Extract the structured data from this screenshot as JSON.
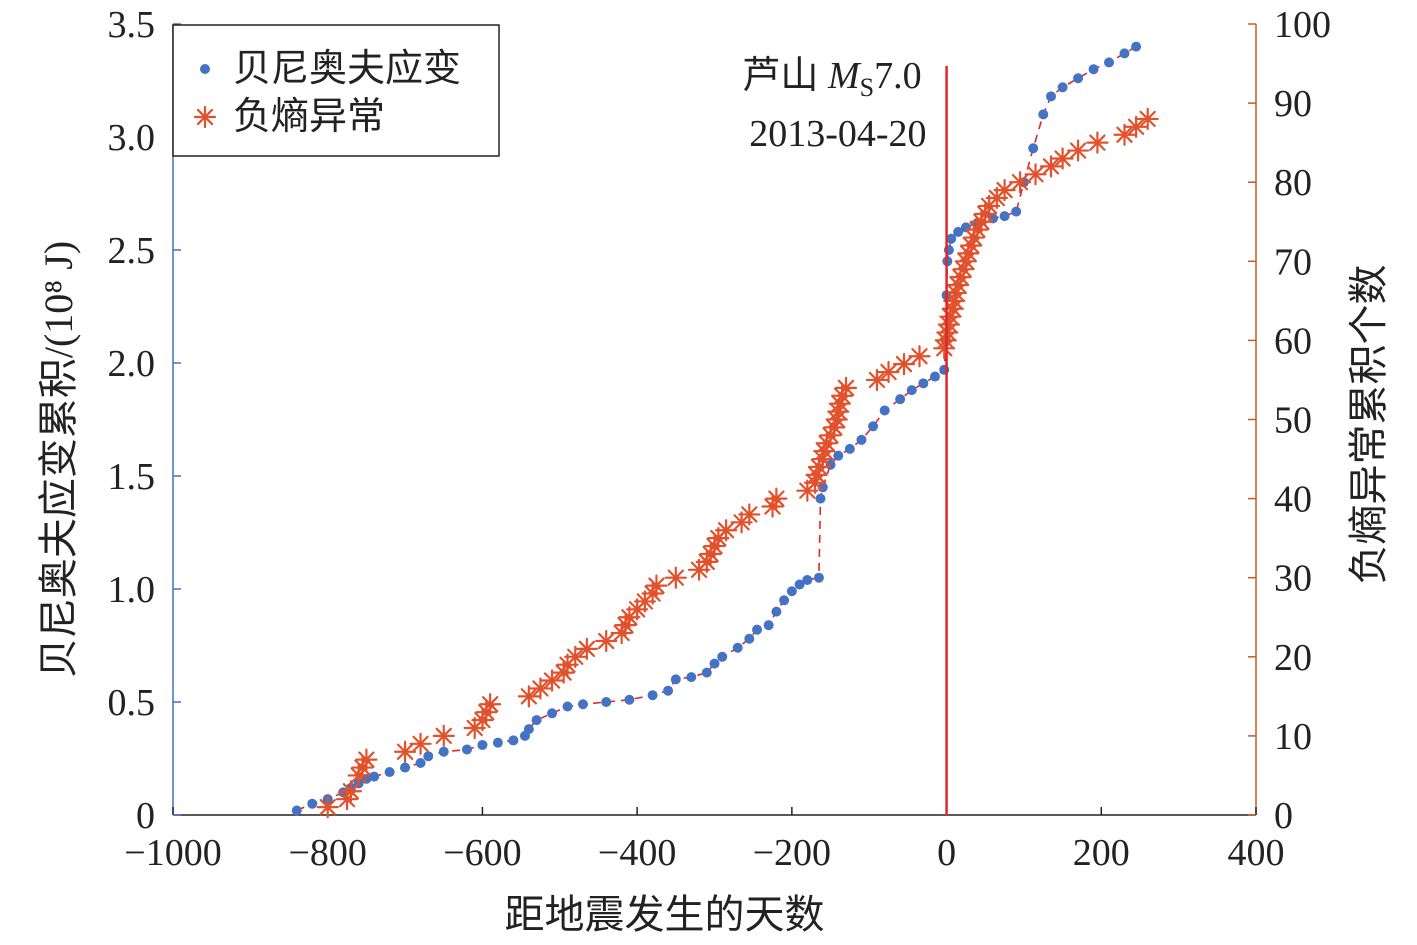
{
  "colors": {
    "strain": "#4472c4",
    "entropy": "#e2512b",
    "event": "#e0262b",
    "axis_left": "#4472c4",
    "axis_right": "#c55a2b"
  },
  "chart_data": {
    "type": "scatter",
    "xlabel": "距地震发生的天数",
    "ylabel_left": "贝尼奥夫应变累积/(10⁸ J)",
    "ylabel_right": "负熵异常累积个数",
    "xlim": [
      -1000,
      400
    ],
    "ylim_left": [
      0,
      3.5
    ],
    "ylim_right": [
      0,
      100
    ],
    "x_ticks": [
      -1000,
      -800,
      -600,
      -400,
      -200,
      0,
      200,
      400
    ],
    "x_tick_labels": [
      "−1000",
      "−800",
      "−600",
      "−400",
      "−200",
      "0",
      "200",
      "400"
    ],
    "y_left_ticks": [
      0,
      0.5,
      1.0,
      1.5,
      2.0,
      2.5,
      3.0,
      3.5
    ],
    "y_left_tick_labels": [
      "0",
      "0.5",
      "1.0",
      "1.5",
      "2.0",
      "2.5",
      "3.0",
      "3.5"
    ],
    "y_right_ticks": [
      0,
      10,
      20,
      30,
      40,
      50,
      60,
      70,
      80,
      90,
      100
    ],
    "y_right_tick_labels": [
      "0",
      "10",
      "20",
      "30",
      "40",
      "50",
      "60",
      "70",
      "80",
      "90",
      "100"
    ],
    "legend": {
      "position": "top-left",
      "entries": [
        "贝尼奥夫应变",
        "负熵异常"
      ]
    },
    "annotation": {
      "x": 0,
      "line1_prefix": "芦山 ",
      "line1_italic": "M",
      "line1_sub": "S",
      "line1_suffix": "7.0",
      "line2": "2013-04-20"
    },
    "series": [
      {
        "name": "贝尼奥夫应变",
        "axis": "left",
        "marker": "dot",
        "points": [
          [
            -840,
            0.02
          ],
          [
            -820,
            0.05
          ],
          [
            -800,
            0.07
          ],
          [
            -780,
            0.1
          ],
          [
            -770,
            0.12
          ],
          [
            -760,
            0.14
          ],
          [
            -750,
            0.16
          ],
          [
            -740,
            0.17
          ],
          [
            -720,
            0.19
          ],
          [
            -700,
            0.21
          ],
          [
            -680,
            0.23
          ],
          [
            -670,
            0.26
          ],
          [
            -650,
            0.28
          ],
          [
            -620,
            0.29
          ],
          [
            -600,
            0.31
          ],
          [
            -580,
            0.32
          ],
          [
            -560,
            0.33
          ],
          [
            -545,
            0.35
          ],
          [
            -540,
            0.38
          ],
          [
            -530,
            0.42
          ],
          [
            -510,
            0.45
          ],
          [
            -490,
            0.48
          ],
          [
            -470,
            0.49
          ],
          [
            -440,
            0.5
          ],
          [
            -410,
            0.51
          ],
          [
            -380,
            0.53
          ],
          [
            -360,
            0.55
          ],
          [
            -350,
            0.6
          ],
          [
            -330,
            0.61
          ],
          [
            -310,
            0.63
          ],
          [
            -300,
            0.67
          ],
          [
            -290,
            0.7
          ],
          [
            -270,
            0.74
          ],
          [
            -255,
            0.78
          ],
          [
            -245,
            0.82
          ],
          [
            -230,
            0.84
          ],
          [
            -220,
            0.9
          ],
          [
            -210,
            0.95
          ],
          [
            -200,
            0.99
          ],
          [
            -190,
            1.02
          ],
          [
            -180,
            1.04
          ],
          [
            -165,
            1.05
          ],
          [
            -163,
            1.4
          ],
          [
            -160,
            1.45
          ],
          [
            -150,
            1.55
          ],
          [
            -140,
            1.59
          ],
          [
            -125,
            1.62
          ],
          [
            -110,
            1.66
          ],
          [
            -95,
            1.72
          ],
          [
            -80,
            1.79
          ],
          [
            -60,
            1.84
          ],
          [
            -45,
            1.88
          ],
          [
            -30,
            1.91
          ],
          [
            -15,
            1.94
          ],
          [
            -3,
            1.97
          ],
          [
            -1,
            2.1
          ],
          [
            0,
            2.3
          ],
          [
            1,
            2.45
          ],
          [
            3,
            2.5
          ],
          [
            6,
            2.55
          ],
          [
            15,
            2.58
          ],
          [
            25,
            2.6
          ],
          [
            40,
            2.62
          ],
          [
            60,
            2.64
          ],
          [
            75,
            2.65
          ],
          [
            90,
            2.67
          ],
          [
            100,
            2.8
          ],
          [
            112,
            2.95
          ],
          [
            125,
            3.1
          ],
          [
            135,
            3.18
          ],
          [
            150,
            3.22
          ],
          [
            170,
            3.26
          ],
          [
            190,
            3.3
          ],
          [
            210,
            3.33
          ],
          [
            230,
            3.37
          ],
          [
            245,
            3.4
          ]
        ]
      },
      {
        "name": "负熵异常",
        "axis": "right",
        "marker": "asterisk",
        "points": [
          [
            -800,
            1
          ],
          [
            -775,
            2
          ],
          [
            -770,
            3
          ],
          [
            -760,
            5
          ],
          [
            -755,
            6
          ],
          [
            -750,
            7
          ],
          [
            -700,
            8
          ],
          [
            -680,
            9
          ],
          [
            -650,
            10
          ],
          [
            -610,
            11
          ],
          [
            -600,
            12
          ],
          [
            -595,
            13
          ],
          [
            -590,
            14
          ],
          [
            -540,
            15
          ],
          [
            -525,
            16
          ],
          [
            -510,
            17
          ],
          [
            -495,
            18
          ],
          [
            -490,
            19
          ],
          [
            -480,
            20
          ],
          [
            -465,
            21
          ],
          [
            -440,
            22
          ],
          [
            -420,
            23
          ],
          [
            -415,
            24
          ],
          [
            -410,
            25
          ],
          [
            -400,
            26
          ],
          [
            -390,
            27
          ],
          [
            -380,
            28
          ],
          [
            -375,
            29
          ],
          [
            -350,
            30
          ],
          [
            -320,
            31
          ],
          [
            -310,
            32
          ],
          [
            -305,
            33
          ],
          [
            -300,
            34
          ],
          [
            -295,
            35
          ],
          [
            -285,
            36
          ],
          [
            -265,
            37
          ],
          [
            -255,
            38
          ],
          [
            -225,
            39
          ],
          [
            -220,
            40
          ],
          [
            -180,
            41
          ],
          [
            -170,
            42
          ],
          [
            -168,
            43
          ],
          [
            -165,
            44
          ],
          [
            -160,
            45
          ],
          [
            -158,
            46
          ],
          [
            -155,
            47
          ],
          [
            -150,
            48
          ],
          [
            -145,
            49
          ],
          [
            -142,
            50
          ],
          [
            -140,
            51
          ],
          [
            -138,
            52
          ],
          [
            -135,
            53
          ],
          [
            -130,
            54
          ],
          [
            -90,
            55
          ],
          [
            -75,
            56
          ],
          [
            -55,
            57
          ],
          [
            -35,
            58
          ],
          [
            -3,
            59
          ],
          [
            -1,
            60
          ],
          [
            1,
            61
          ],
          [
            3,
            62
          ],
          [
            5,
            63
          ],
          [
            8,
            64
          ],
          [
            10,
            65
          ],
          [
            12,
            66
          ],
          [
            15,
            67
          ],
          [
            18,
            68
          ],
          [
            22,
            69
          ],
          [
            25,
            70
          ],
          [
            28,
            71
          ],
          [
            32,
            72
          ],
          [
            35,
            73
          ],
          [
            40,
            74
          ],
          [
            45,
            75
          ],
          [
            50,
            76
          ],
          [
            55,
            77
          ],
          [
            65,
            78
          ],
          [
            75,
            79
          ],
          [
            95,
            80
          ],
          [
            115,
            81
          ],
          [
            135,
            82
          ],
          [
            150,
            83
          ],
          [
            170,
            84
          ],
          [
            195,
            85
          ],
          [
            230,
            86
          ],
          [
            245,
            87
          ],
          [
            260,
            88
          ]
        ]
      }
    ]
  }
}
